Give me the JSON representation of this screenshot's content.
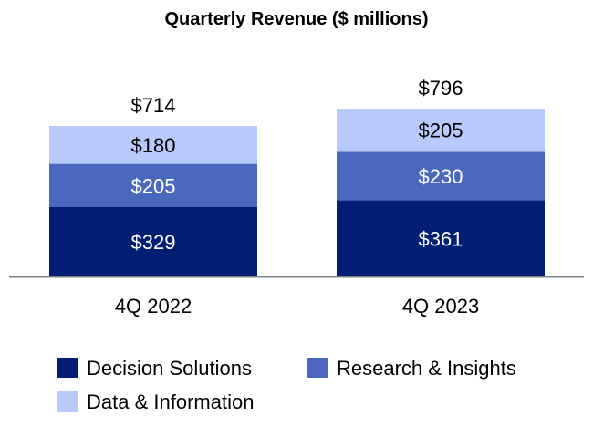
{
  "chart_data": {
    "type": "bar",
    "stacked": true,
    "title": "Quarterly Revenue ($ millions)",
    "xlabel": "",
    "ylabel": "",
    "categories": [
      "4Q 2022",
      "4Q 2023"
    ],
    "series": [
      {
        "name": "Decision Solutions",
        "values": [
          329,
          361
        ],
        "color": "#001E73"
      },
      {
        "name": "Research & Insights",
        "values": [
          205,
          230
        ],
        "color": "#4A69BE"
      },
      {
        "name": "Data & Information",
        "values": [
          180,
          205
        ],
        "color": "#B8C9FC"
      }
    ],
    "totals": [
      714,
      796
    ],
    "value_prefix": "$",
    "grid": false,
    "legend_position": "bottom",
    "axis_color": "#808080"
  }
}
